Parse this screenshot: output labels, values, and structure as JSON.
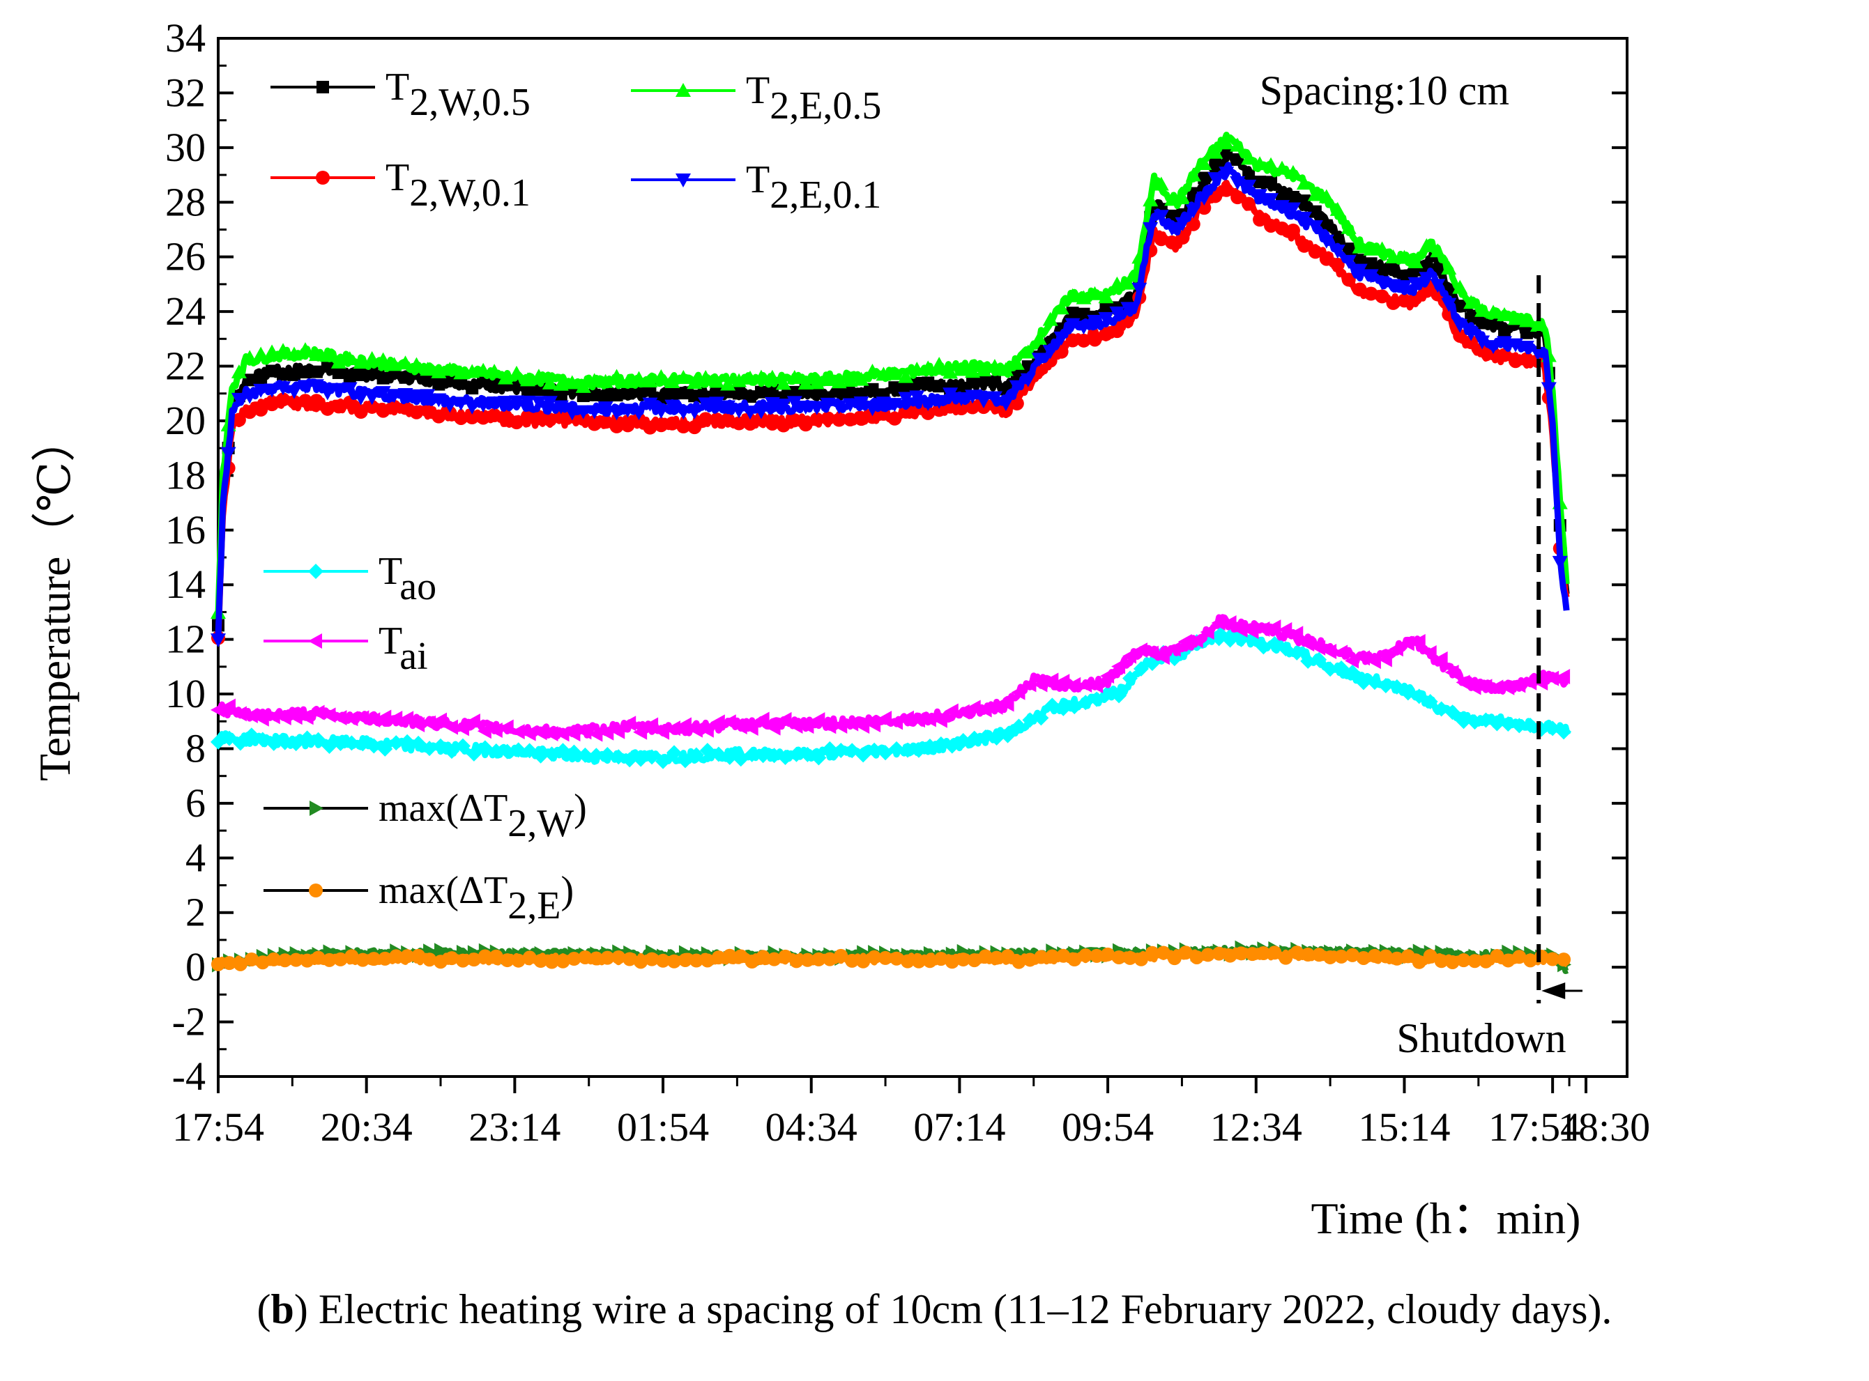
{
  "chart_data": {
    "type": "line",
    "xlabel": "Time (h：min)",
    "ylabel": "Temperature（℃）",
    "ylim": [
      -4,
      34
    ],
    "yticks": [
      -4,
      -2,
      0,
      2,
      4,
      6,
      8,
      10,
      12,
      14,
      16,
      18,
      20,
      22,
      24,
      26,
      28,
      30,
      32,
      34
    ],
    "xlim": [
      0,
      1476
    ],
    "xticks": [
      {
        "x": 0,
        "label": "17:54"
      },
      {
        "x": 160,
        "label": "20:34"
      },
      {
        "x": 320,
        "label": "23:14"
      },
      {
        "x": 480,
        "label": "01:54"
      },
      {
        "x": 640,
        "label": "04:34"
      },
      {
        "x": 800,
        "label": "07:14"
      },
      {
        "x": 960,
        "label": "09:54"
      },
      {
        "x": 1120,
        "label": "12:34"
      },
      {
        "x": 1280,
        "label": "15:14"
      },
      {
        "x": 1440,
        "label": "17:54"
      },
      {
        "x": 1476,
        "label": "18:30"
      }
    ],
    "x_unit": "minutes since 17:54",
    "annotations": {
      "spacing": "Spacing:10 cm",
      "shutdown": "Shutdown",
      "shutdown_x": 1425
    },
    "series": [
      {
        "key": "T2W05",
        "label": "T",
        "sub": "2,W,0.5",
        "color": "#000000",
        "marker": "square",
        "points": [
          [
            0,
            12.5
          ],
          [
            5,
            17
          ],
          [
            15,
            20.5
          ],
          [
            30,
            21.5
          ],
          [
            60,
            21.8
          ],
          [
            100,
            21.9
          ],
          [
            150,
            21.7
          ],
          [
            200,
            21.6
          ],
          [
            260,
            21.4
          ],
          [
            320,
            21.2
          ],
          [
            400,
            21.0
          ],
          [
            480,
            21.0
          ],
          [
            560,
            21.0
          ],
          [
            640,
            21.0
          ],
          [
            720,
            21.1
          ],
          [
            780,
            21.3
          ],
          [
            830,
            21.4
          ],
          [
            850,
            21.2
          ],
          [
            880,
            22.2
          ],
          [
            920,
            23.8
          ],
          [
            960,
            24.0
          ],
          [
            990,
            24.6
          ],
          [
            1010,
            28.0
          ],
          [
            1035,
            27.2
          ],
          [
            1060,
            28.6
          ],
          [
            1090,
            29.8
          ],
          [
            1120,
            28.8
          ],
          [
            1160,
            28.2
          ],
          [
            1200,
            27.2
          ],
          [
            1230,
            25.8
          ],
          [
            1260,
            25.6
          ],
          [
            1290,
            25.3
          ],
          [
            1310,
            26.0
          ],
          [
            1340,
            24.2
          ],
          [
            1370,
            23.5
          ],
          [
            1410,
            23.4
          ],
          [
            1432,
            23.2
          ],
          [
            1440,
            20.5
          ],
          [
            1448,
            16.0
          ],
          [
            1455,
            13.6
          ]
        ]
      },
      {
        "key": "T2W01",
        "label": "T",
        "sub": "2,W,0.1",
        "color": "#ff0000",
        "marker": "circle",
        "points": [
          [
            0,
            12.0
          ],
          [
            5,
            16.5
          ],
          [
            15,
            19.7
          ],
          [
            30,
            20.4
          ],
          [
            60,
            20.7
          ],
          [
            100,
            20.6
          ],
          [
            150,
            20.5
          ],
          [
            200,
            20.4
          ],
          [
            260,
            20.2
          ],
          [
            320,
            20.0
          ],
          [
            400,
            20.0
          ],
          [
            480,
            19.9
          ],
          [
            560,
            20.0
          ],
          [
            640,
            20.0
          ],
          [
            720,
            20.2
          ],
          [
            780,
            20.4
          ],
          [
            830,
            20.6
          ],
          [
            850,
            20.3
          ],
          [
            880,
            21.5
          ],
          [
            920,
            23.0
          ],
          [
            960,
            23.2
          ],
          [
            990,
            23.8
          ],
          [
            1010,
            27.0
          ],
          [
            1035,
            26.4
          ],
          [
            1060,
            27.8
          ],
          [
            1090,
            28.6
          ],
          [
            1120,
            27.6
          ],
          [
            1160,
            26.8
          ],
          [
            1200,
            25.9
          ],
          [
            1230,
            24.8
          ],
          [
            1260,
            24.5
          ],
          [
            1290,
            24.3
          ],
          [
            1310,
            25.0
          ],
          [
            1340,
            23.0
          ],
          [
            1370,
            22.4
          ],
          [
            1410,
            22.2
          ],
          [
            1432,
            22.0
          ],
          [
            1440,
            19.5
          ],
          [
            1448,
            15.5
          ],
          [
            1455,
            13.4
          ]
        ]
      },
      {
        "key": "T2E05",
        "label": "T",
        "sub": "2,E,0.5",
        "color": "#00ff00",
        "marker": "triangle-up",
        "points": [
          [
            0,
            13.0
          ],
          [
            5,
            18
          ],
          [
            15,
            21.2
          ],
          [
            30,
            22.2
          ],
          [
            60,
            22.4
          ],
          [
            100,
            22.5
          ],
          [
            150,
            22.2
          ],
          [
            200,
            22.0
          ],
          [
            260,
            21.8
          ],
          [
            320,
            21.6
          ],
          [
            400,
            21.4
          ],
          [
            480,
            21.5
          ],
          [
            560,
            21.5
          ],
          [
            640,
            21.5
          ],
          [
            720,
            21.7
          ],
          [
            780,
            21.9
          ],
          [
            830,
            22.0
          ],
          [
            850,
            21.8
          ],
          [
            880,
            22.8
          ],
          [
            920,
            24.6
          ],
          [
            960,
            24.6
          ],
          [
            990,
            25.3
          ],
          [
            1010,
            28.8
          ],
          [
            1035,
            28.0
          ],
          [
            1060,
            29.4
          ],
          [
            1090,
            30.4
          ],
          [
            1120,
            29.4
          ],
          [
            1160,
            29.0
          ],
          [
            1200,
            28.0
          ],
          [
            1230,
            26.5
          ],
          [
            1260,
            26.1
          ],
          [
            1290,
            25.9
          ],
          [
            1310,
            26.5
          ],
          [
            1340,
            24.8
          ],
          [
            1370,
            23.9
          ],
          [
            1410,
            23.8
          ],
          [
            1432,
            23.5
          ],
          [
            1440,
            21.0
          ],
          [
            1448,
            17.0
          ],
          [
            1455,
            14.2
          ]
        ]
      },
      {
        "key": "T2E01",
        "label": "T",
        "sub": "2,E,0.1",
        "color": "#0000ff",
        "marker": "triangle-down",
        "points": [
          [
            0,
            12.1
          ],
          [
            5,
            16.8
          ],
          [
            15,
            20.3
          ],
          [
            30,
            21.0
          ],
          [
            60,
            21.2
          ],
          [
            100,
            21.3
          ],
          [
            150,
            21.0
          ],
          [
            200,
            20.9
          ],
          [
            260,
            20.7
          ],
          [
            320,
            20.6
          ],
          [
            400,
            20.4
          ],
          [
            480,
            20.5
          ],
          [
            560,
            20.5
          ],
          [
            640,
            20.5
          ],
          [
            720,
            20.6
          ],
          [
            780,
            20.8
          ],
          [
            830,
            20.9
          ],
          [
            850,
            20.7
          ],
          [
            880,
            21.9
          ],
          [
            920,
            23.5
          ],
          [
            960,
            23.6
          ],
          [
            990,
            24.2
          ],
          [
            1010,
            27.6
          ],
          [
            1035,
            27.0
          ],
          [
            1060,
            28.2
          ],
          [
            1090,
            29.2
          ],
          [
            1120,
            28.2
          ],
          [
            1160,
            27.6
          ],
          [
            1200,
            26.6
          ],
          [
            1230,
            25.4
          ],
          [
            1260,
            25.0
          ],
          [
            1290,
            24.8
          ],
          [
            1310,
            25.4
          ],
          [
            1340,
            23.6
          ],
          [
            1370,
            22.9
          ],
          [
            1410,
            22.7
          ],
          [
            1432,
            22.5
          ],
          [
            1440,
            20.0
          ],
          [
            1448,
            15.0
          ],
          [
            1455,
            13.0
          ]
        ]
      },
      {
        "key": "Tao",
        "label": "T",
        "sub": "ao",
        "color": "#00ffff",
        "marker": "diamond",
        "points": [
          [
            0,
            8.4
          ],
          [
            60,
            8.3
          ],
          [
            160,
            8.2
          ],
          [
            250,
            8.0
          ],
          [
            320,
            7.9
          ],
          [
            400,
            7.7
          ],
          [
            480,
            7.7
          ],
          [
            560,
            7.8
          ],
          [
            640,
            7.8
          ],
          [
            700,
            7.9
          ],
          [
            760,
            8.0
          ],
          [
            820,
            8.3
          ],
          [
            860,
            8.7
          ],
          [
            900,
            9.5
          ],
          [
            950,
            9.8
          ],
          [
            980,
            10.2
          ],
          [
            1000,
            11.2
          ],
          [
            1040,
            11.5
          ],
          [
            1080,
            12.2
          ],
          [
            1120,
            11.9
          ],
          [
            1160,
            11.6
          ],
          [
            1200,
            11.0
          ],
          [
            1230,
            10.6
          ],
          [
            1260,
            10.4
          ],
          [
            1290,
            10.1
          ],
          [
            1320,
            9.4
          ],
          [
            1350,
            9.1
          ],
          [
            1390,
            9.0
          ],
          [
            1430,
            8.8
          ],
          [
            1456,
            8.7
          ]
        ]
      },
      {
        "key": "Tai",
        "label": "T",
        "sub": "ai",
        "color": "#ff00ff",
        "marker": "triangle-left",
        "points": [
          [
            0,
            9.5
          ],
          [
            30,
            9.2
          ],
          [
            100,
            9.3
          ],
          [
            160,
            9.1
          ],
          [
            250,
            8.9
          ],
          [
            320,
            8.7
          ],
          [
            380,
            8.6
          ],
          [
            440,
            8.8
          ],
          [
            500,
            8.7
          ],
          [
            560,
            8.9
          ],
          [
            640,
            8.9
          ],
          [
            700,
            9.0
          ],
          [
            760,
            9.1
          ],
          [
            820,
            9.4
          ],
          [
            850,
            9.6
          ],
          [
            880,
            10.5
          ],
          [
            920,
            10.3
          ],
          [
            960,
            10.5
          ],
          [
            990,
            11.5
          ],
          [
            1020,
            11.5
          ],
          [
            1060,
            12.0
          ],
          [
            1080,
            12.7
          ],
          [
            1100,
            12.5
          ],
          [
            1140,
            12.3
          ],
          [
            1170,
            12.0
          ],
          [
            1200,
            11.7
          ],
          [
            1230,
            11.3
          ],
          [
            1260,
            11.4
          ],
          [
            1290,
            12.0
          ],
          [
            1320,
            11.1
          ],
          [
            1350,
            10.4
          ],
          [
            1380,
            10.2
          ],
          [
            1410,
            10.4
          ],
          [
            1430,
            10.6
          ],
          [
            1456,
            10.5
          ]
        ]
      },
      {
        "key": "dTW",
        "label": "max(ΔT",
        "sub": "2,W",
        "suffix": ")",
        "color": "#228b22",
        "marker": "triangle-right",
        "points": [
          [
            0,
            0.1
          ],
          [
            100,
            0.5
          ],
          [
            300,
            0.5
          ],
          [
            600,
            0.4
          ],
          [
            900,
            0.5
          ],
          [
            1100,
            0.6
          ],
          [
            1300,
            0.5
          ],
          [
            1440,
            0.4
          ],
          [
            1456,
            -0.1
          ]
        ]
      },
      {
        "key": "dTE",
        "label": "max(ΔT",
        "sub": "2,E",
        "suffix": ")",
        "color": "#ff8c00",
        "marker": "circle",
        "points": [
          [
            0,
            0.2
          ],
          [
            100,
            0.3
          ],
          [
            300,
            0.3
          ],
          [
            600,
            0.3
          ],
          [
            900,
            0.3
          ],
          [
            1100,
            0.5
          ],
          [
            1300,
            0.3
          ],
          [
            1440,
            0.3
          ],
          [
            1456,
            0.2
          ]
        ]
      }
    ]
  },
  "caption": {
    "bold_letter": "b",
    "text": ") Electric heating wire a spacing of 10cm (11–12 February 2022, cloudy days)."
  }
}
